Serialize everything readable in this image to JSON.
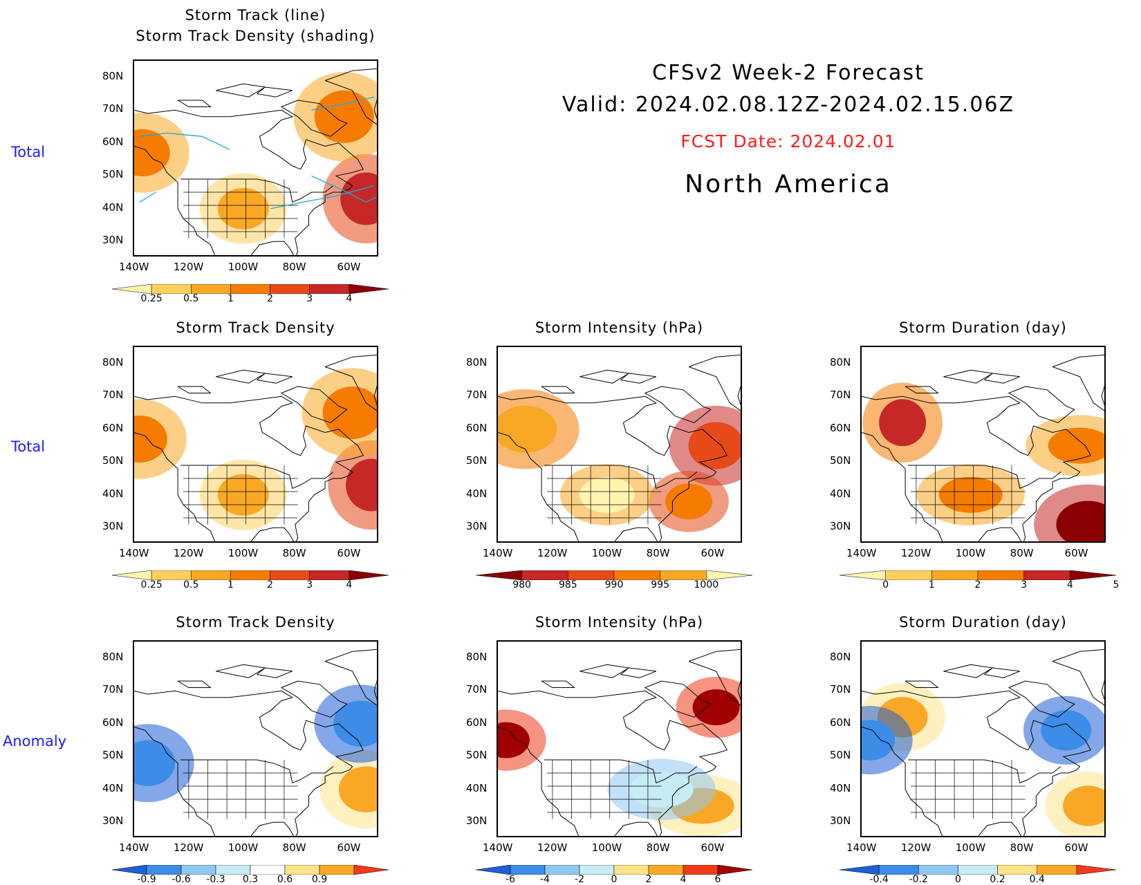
{
  "header": {
    "line1": "CFSv2 Week-2 Forecast",
    "line2": "Valid: 2024.02.08.12Z-2024.02.15.06Z",
    "fcst": "FCST Date: 2024.02.01",
    "region": "North America",
    "fcst_color": "#ff1a1a"
  },
  "row_labels": {
    "r0": "Total",
    "r1": "Total",
    "r2": "Anomaly"
  },
  "lat_ticks": [
    "80N",
    "70N",
    "60N",
    "50N",
    "40N",
    "30N"
  ],
  "lon_ticks": [
    "140W",
    "120W",
    "100W",
    "80W",
    "60W"
  ],
  "chart_data": [
    {
      "type": "heatmap",
      "title": "Storm Track (line)",
      "subtitle": "Storm Track Density (shading)",
      "row": "Total",
      "legend_levels": [
        "0.25",
        "0.5",
        "1",
        "2",
        "3",
        "4"
      ],
      "colors": [
        "#fff4b0",
        "#ffd060",
        "#f9a825",
        "#f57c00",
        "#e64a19",
        "#c62828",
        "#8b0000"
      ],
      "xlim": [
        -140,
        -50
      ],
      "ylim": [
        25,
        85
      ],
      "hotspots": [
        {
          "lon": -55,
          "lat": 43,
          "value": 3.5
        },
        {
          "lon": -63,
          "lat": 68,
          "value": 1.5
        },
        {
          "lon": -137,
          "lat": 57,
          "value": 1.0
        },
        {
          "lon": -100,
          "lat": 40,
          "value": 0.5
        }
      ]
    },
    {
      "type": "heatmap",
      "title": "Storm Track Density",
      "row": "Total",
      "legend_levels": [
        "0.25",
        "0.5",
        "1",
        "2",
        "3",
        "4"
      ],
      "colors": [
        "#fff4b0",
        "#ffd060",
        "#f9a825",
        "#f57c00",
        "#e64a19",
        "#c62828",
        "#8b0000"
      ],
      "xlim": [
        -140,
        -50
      ],
      "ylim": [
        25,
        85
      ],
      "hotspots": [
        {
          "lon": -53,
          "lat": 43,
          "value": 3.5
        },
        {
          "lon": -60,
          "lat": 65,
          "value": 1.5
        },
        {
          "lon": -138,
          "lat": 57,
          "value": 1.0
        },
        {
          "lon": -100,
          "lat": 40,
          "value": 0.5
        }
      ]
    },
    {
      "type": "heatmap",
      "title": "Storm Intensity (hPa)",
      "row": "Total",
      "legend_levels": [
        "980",
        "985",
        "990",
        "995",
        "1000"
      ],
      "colors": [
        "#8b0000",
        "#c62828",
        "#e64a19",
        "#f57c00",
        "#f9a825",
        "#fff4b0"
      ],
      "xlim": [
        -140,
        -50
      ],
      "ylim": [
        25,
        85
      ],
      "hotspots": [
        {
          "lon": -60,
          "lat": 55,
          "value": 985
        },
        {
          "lon": -70,
          "lat": 38,
          "value": 990
        },
        {
          "lon": -130,
          "lat": 60,
          "value": 995
        },
        {
          "lon": -100,
          "lat": 40,
          "value": 1000
        }
      ]
    },
    {
      "type": "heatmap",
      "title": "Storm Duration (day)",
      "row": "Total",
      "legend_levels": [
        "0",
        "1",
        "2",
        "3",
        "4",
        "5"
      ],
      "colors": [
        "#fff4b0",
        "#ffd060",
        "#f9a825",
        "#f57c00",
        "#c62828",
        "#8b0000"
      ],
      "xlim": [
        -140,
        -50
      ],
      "ylim": [
        25,
        85
      ],
      "hotspots": [
        {
          "lon": -57,
          "lat": 31,
          "value": 5
        },
        {
          "lon": -125,
          "lat": 62,
          "value": 3
        },
        {
          "lon": -60,
          "lat": 55,
          "value": 2
        },
        {
          "lon": -100,
          "lat": 40,
          "value": 2
        }
      ]
    },
    {
      "type": "heatmap",
      "title": "Storm Track Density",
      "row": "Anomaly",
      "legend_levels": [
        "-0.9",
        "-0.6",
        "-0.3",
        "0.3",
        "0.6",
        "0.9"
      ],
      "colors": [
        "#1e5fd6",
        "#3c8ce8",
        "#8fc9f2",
        "#c7ecf5",
        "#ffffff",
        "#ffe38a",
        "#f9a825",
        "#ef3b1a"
      ],
      "xlim": [
        -140,
        -50
      ],
      "ylim": [
        25,
        85
      ],
      "hotspots": [
        {
          "lon": -55,
          "lat": 40,
          "value": 0.9
        },
        {
          "lon": -135,
          "lat": 48,
          "value": -0.9
        },
        {
          "lon": -57,
          "lat": 60,
          "value": -0.9
        }
      ]
    },
    {
      "type": "heatmap",
      "title": "Storm Intensity (hPa)",
      "row": "Anomaly",
      "legend_levels": [
        "-6",
        "-4",
        "-2",
        "0",
        "2",
        "4",
        "6"
      ],
      "colors": [
        "#1e5fd6",
        "#3c8ce8",
        "#8fc9f2",
        "#c7ecf5",
        "#ffe38a",
        "#f9a825",
        "#ef3b1a",
        "#a00000"
      ],
      "xlim": [
        -140,
        -50
      ],
      "ylim": [
        25,
        85
      ],
      "hotspots": [
        {
          "lon": -60,
          "lat": 65,
          "value": 6
        },
        {
          "lon": -137,
          "lat": 55,
          "value": 6
        },
        {
          "lon": -65,
          "lat": 35,
          "value": 2
        },
        {
          "lon": -80,
          "lat": 40,
          "value": -2
        }
      ]
    },
    {
      "type": "heatmap",
      "title": "Storm Duration (day)",
      "row": "Anomaly",
      "legend_levels": [
        "-0.4",
        "-0.2",
        "0",
        "0.2",
        "0.4"
      ],
      "colors": [
        "#1e5fd6",
        "#3c8ce8",
        "#8fc9f2",
        "#c7ecf5",
        "#ffe38a",
        "#f9a825",
        "#ef3b1a"
      ],
      "xlim": [
        -140,
        -50
      ],
      "ylim": [
        25,
        85
      ],
      "hotspots": [
        {
          "lon": -57,
          "lat": 35,
          "value": 0.4
        },
        {
          "lon": -125,
          "lat": 62,
          "value": 0.4
        },
        {
          "lon": -65,
          "lat": 58,
          "value": -0.4
        },
        {
          "lon": -137,
          "lat": 55,
          "value": -0.4
        }
      ]
    }
  ]
}
